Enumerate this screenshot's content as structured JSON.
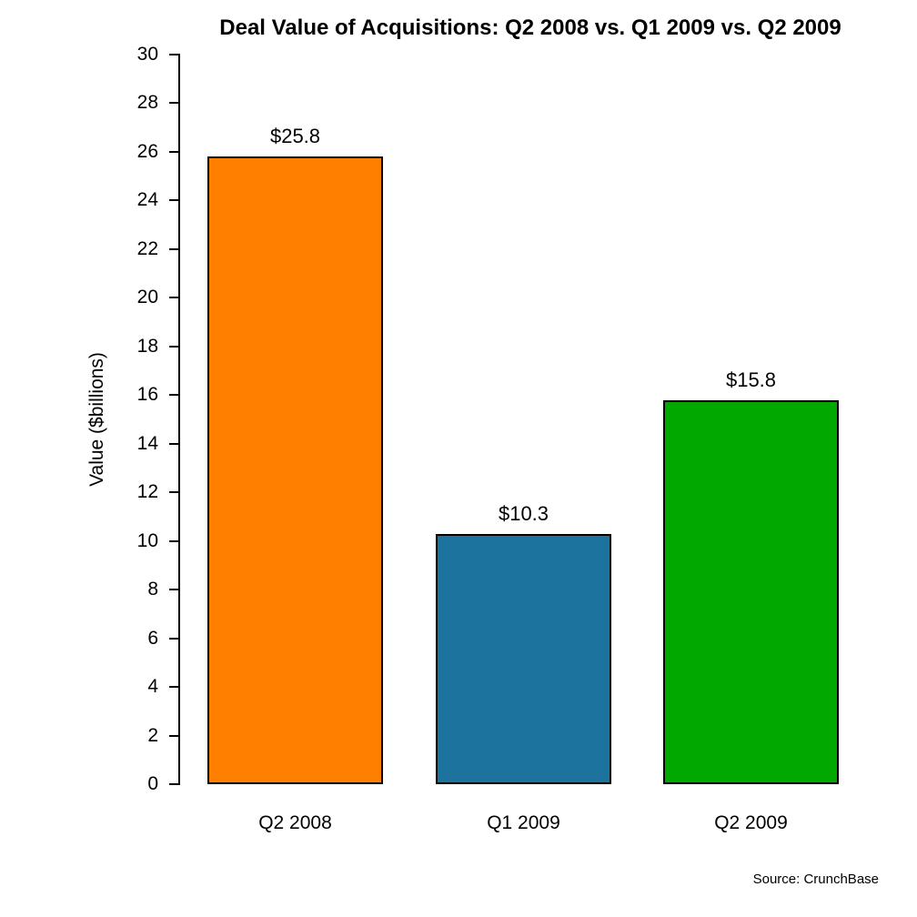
{
  "chart_data": {
    "type": "bar",
    "title": "Deal Value of Acquisitions: Q2 2008 vs. Q1 2009 vs. Q2 2009",
    "categories": [
      "Q2 2008",
      "Q1 2009",
      "Q2 2009"
    ],
    "values": [
      25.8,
      10.3,
      15.8
    ],
    "value_labels": [
      "$25.8",
      "$10.3",
      "$15.8"
    ],
    "bar_colors": [
      "#FF7F00",
      "#1C739E",
      "#00A800"
    ],
    "bar_border_color": "#000000",
    "xlabel": "",
    "ylabel": "Value ($billions)",
    "ylim": [
      0,
      30
    ],
    "ytick_step": 2,
    "grid": false,
    "legend": null
  },
  "source_note": "Source: CrunchBase"
}
